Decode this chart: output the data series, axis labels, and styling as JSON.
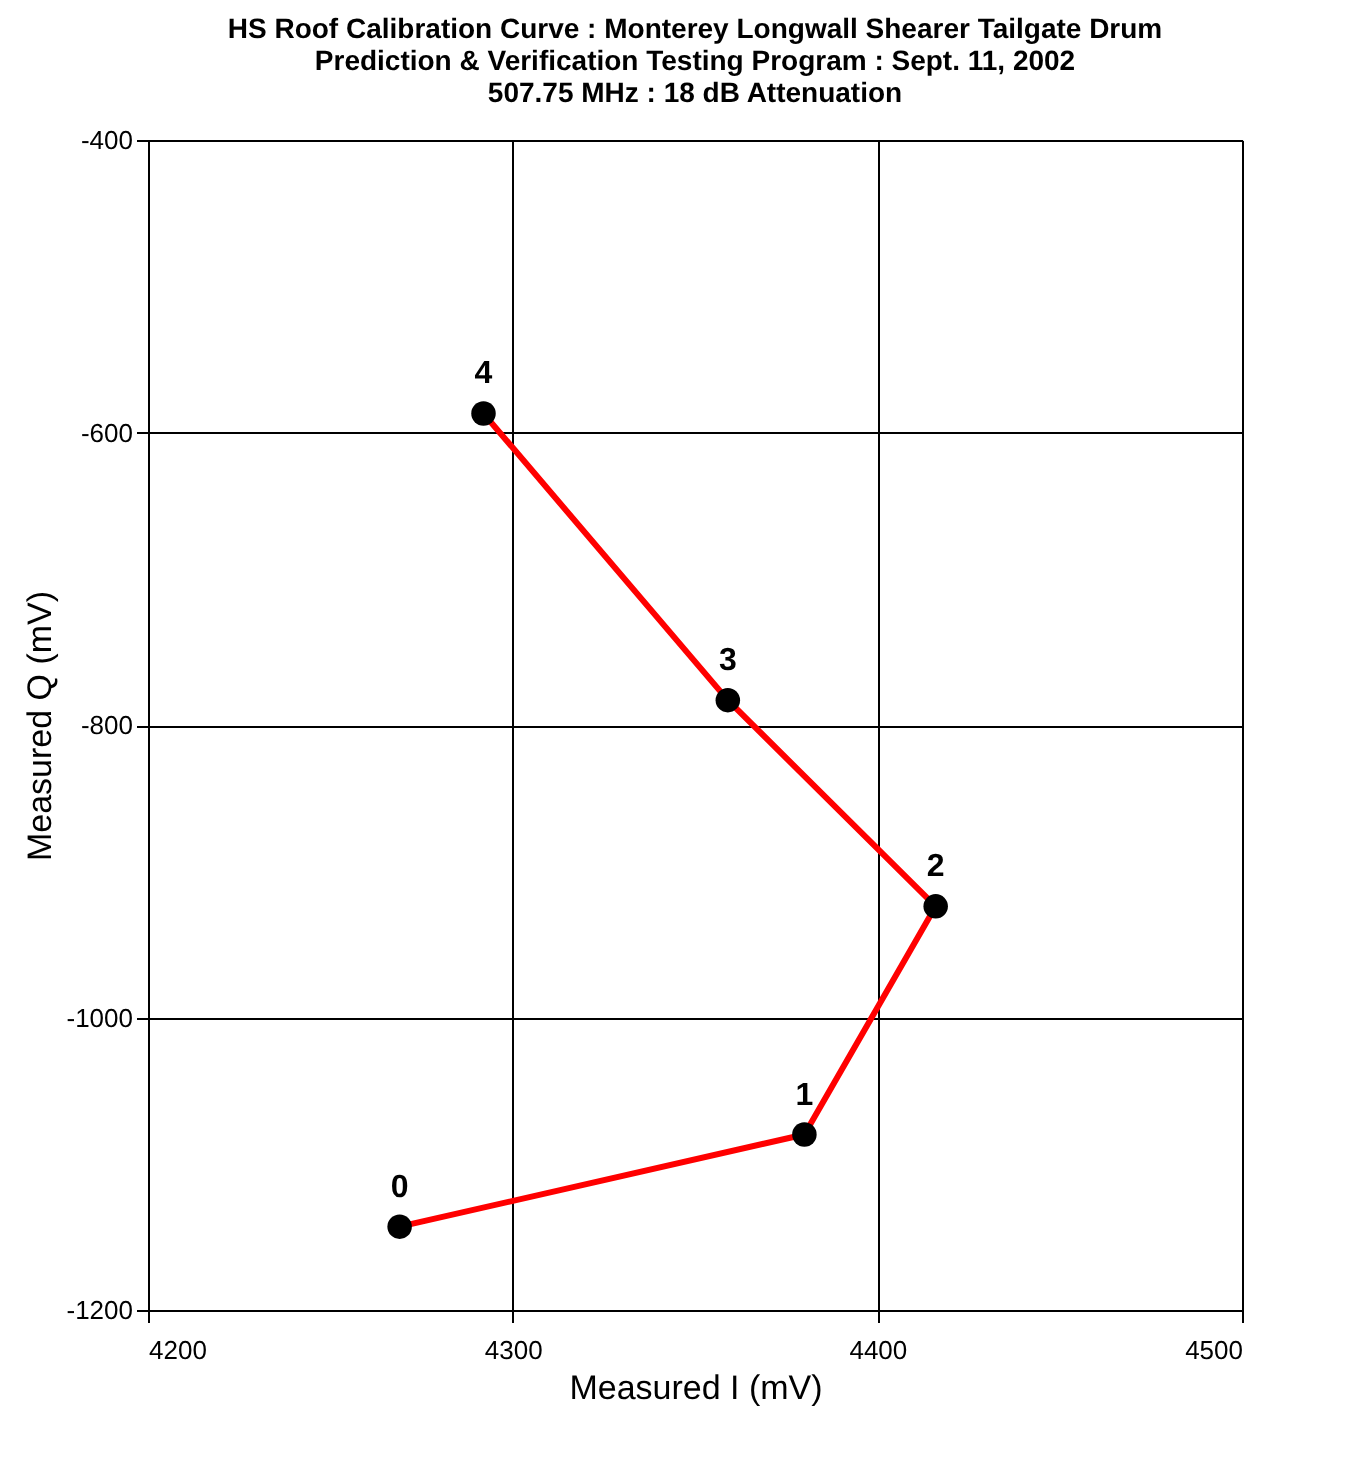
{
  "chart_data": {
    "type": "line",
    "title": [
      "HS Roof Calibration Curve : Monterey Longwall Shearer Tailgate Drum",
      "Prediction & Verification Testing Program : Sept. 11, 2002",
      "507.75 MHz : 18 dB Attenuation"
    ],
    "xlabel": "Measured I (mV)",
    "ylabel": "Measured Q (mV)",
    "x": [
      4269,
      4380,
      4416,
      4359,
      4292
    ],
    "series": [
      {
        "color": "#ff0000",
        "colors": [
          "#000000",
          "#000000",
          "#000000",
          "#000000",
          "#000000"
        ],
        "values": [
          -1143,
          -1080,
          -924,
          -783,
          -587
        ]
      }
    ],
    "annotations": [
      {
        "text": "0",
        "x": 4269,
        "y": -1143
      },
      {
        "text": "1",
        "x": 4380,
        "y": -1080
      },
      {
        "text": "2",
        "x": 4416,
        "y": -924
      },
      {
        "text": "3",
        "x": 4359,
        "y": -783
      },
      {
        "text": "4",
        "x": 4292,
        "y": -587
      }
    ],
    "xlim": [
      4200,
      4500
    ],
    "xticks": [
      4200,
      4300,
      4400,
      4500
    ],
    "ylim": [
      -1200,
      -400
    ],
    "yticks": [
      -1200,
      -1000,
      -800,
      -600,
      -400
    ],
    "grid": true,
    "marker": "circle",
    "line_style": "solid"
  }
}
